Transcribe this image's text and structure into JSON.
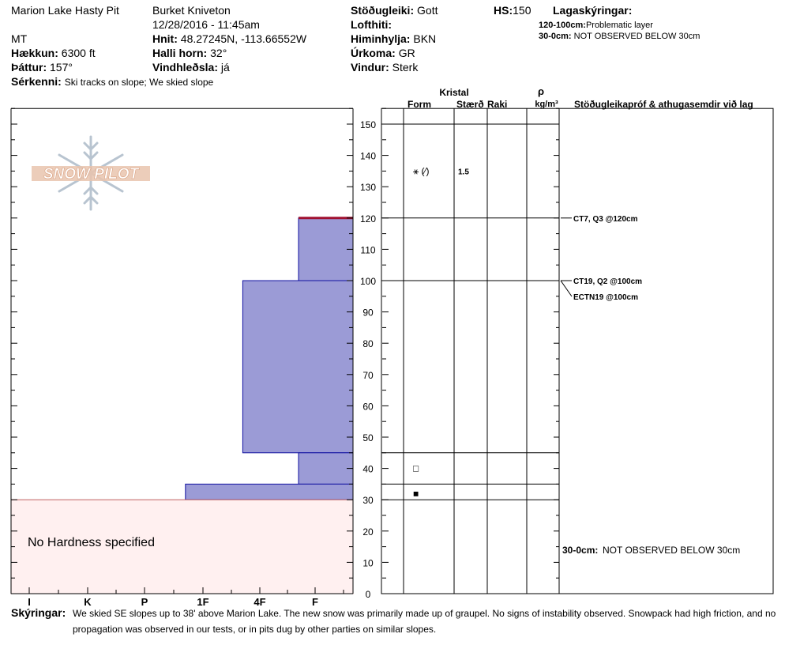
{
  "header": {
    "pit_name": "Marion Lake Hasty Pit",
    "observer": "Burket Kniveton",
    "datetime": "12/28/2016 - 11:45am",
    "region": "MT",
    "stability_label": "Stöðugleiki:",
    "stability_value": "Gott",
    "hs_label": "HS:",
    "hs_value": "150",
    "layer_notes_title": "Lagaskýringar:",
    "air_temp_label": "Lofthiti:",
    "sky_label": "Himinhylja:",
    "sky_value": "BKN",
    "precip_label": "Úrkoma:",
    "precip_value": "GR",
    "wind_label": "Vindur:",
    "wind_value": "Sterk",
    "elevation_label": "Hækkun:",
    "elevation_value": "6300 ft",
    "coords_label": "Hnit:",
    "coords_value": "48.27245N, -113.66552W",
    "aspect_label": "Þáttur:",
    "aspect_value": "157°",
    "slope_label": "Halli horn:",
    "slope_value": "32°",
    "wind_loading_label": "Vindhleðsla:",
    "wind_loading_value": "já",
    "features_label": "Sérkenni:",
    "features_value": "Ski tracks on slope; We skied slope",
    "layer_notes": [
      {
        "range": "120-100cm:",
        "text": "Problematic layer"
      },
      {
        "range": "30-0cm:",
        "text": "NOT OBSERVED BELOW 30cm"
      }
    ]
  },
  "logo": {
    "text": "SNOW PILOT"
  },
  "table_headers": {
    "crystal": "Kristal",
    "form": "Form",
    "size": "Stærð",
    "moisture": "Raki",
    "rho": "ρ",
    "density_unit": "kg/m³",
    "tests": "Stöðugleikapróf & athugasemdir við lag"
  },
  "no_hardness_text": "No Hardness specified",
  "footer": {
    "label": "Skýringar:",
    "line1": "We skied SE slopes up to 38' above Marion Lake. The new snow was primarily made up of graupel. No signs of instability observed. Snowpack had high friction, and no",
    "line2": "propagation was observed in our tests, or in pits dug by other parties on similar slopes."
  },
  "chart_data": {
    "type": "bar",
    "title": "",
    "xlabel": "",
    "ylabel": "",
    "hardness_scale": [
      "I",
      "K",
      "P",
      "1F",
      "4F",
      "F"
    ],
    "depth_ticks": [
      0,
      10,
      20,
      30,
      40,
      50,
      60,
      70,
      80,
      90,
      100,
      110,
      120,
      130,
      140,
      150
    ],
    "ylim": [
      0,
      155
    ],
    "layers": [
      {
        "top": 150,
        "bottom": 120,
        "hardness": 5.7
      },
      {
        "top": 120,
        "bottom": 100,
        "hardness": 4.7
      },
      {
        "top": 100,
        "bottom": 45,
        "hardness": 3.7
      },
      {
        "top": 45,
        "bottom": 35,
        "hardness": 4.7
      },
      {
        "top": 35,
        "bottom": 30,
        "hardness": 2.7
      }
    ],
    "unobserved_layer": {
      "top": 30,
      "bottom": 0
    },
    "problem_layer_depth": 120,
    "grain_observations": [
      {
        "depth": 135,
        "form": "⚹ (⁄)",
        "size": "1.5"
      },
      {
        "depth": 40,
        "form": "□",
        "size": ""
      },
      {
        "depth": 32,
        "form": "■",
        "size": ""
      }
    ],
    "stability_tests": [
      {
        "depth": 120,
        "label": "CT7, Q3 @120cm"
      },
      {
        "depth": 100,
        "label": "CT19, Q2 @100cm"
      },
      {
        "depth": 100,
        "label": "ECTN19 @100cm"
      }
    ],
    "bottom_note": {
      "range": "30-0cm:",
      "text": "NOT OBSERVED BELOW 30cm"
    }
  }
}
